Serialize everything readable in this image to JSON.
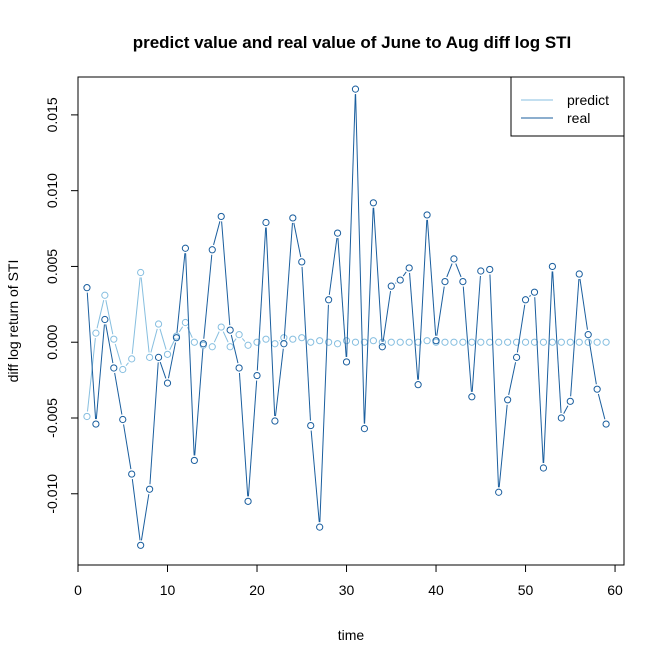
{
  "chart_data": {
    "type": "line",
    "title": "predict value and real value of June to Aug diff log STI",
    "xlabel": "time",
    "ylabel": "diff log return of STI",
    "xlim": [
      0,
      61
    ],
    "ylim": [
      -0.0147,
      0.0175
    ],
    "x_ticks": [
      0,
      10,
      20,
      30,
      40,
      50,
      60
    ],
    "x_tick_labels": [
      "0",
      "10",
      "20",
      "30",
      "40",
      "50",
      "60"
    ],
    "y_ticks": [
      -0.01,
      -0.005,
      0.0,
      0.005,
      0.01,
      0.015
    ],
    "y_tick_labels": [
      "-0.010",
      "-0.005",
      "0.000",
      "0.005",
      "0.010",
      "0.015"
    ],
    "grid": false,
    "legend_position": "top-right",
    "x": [
      1,
      2,
      3,
      4,
      5,
      6,
      7,
      8,
      9,
      10,
      11,
      12,
      13,
      14,
      15,
      16,
      17,
      18,
      19,
      20,
      21,
      22,
      23,
      24,
      25,
      26,
      27,
      28,
      29,
      30,
      31,
      32,
      33,
      34,
      35,
      36,
      37,
      38,
      39,
      40,
      41,
      42,
      43,
      44,
      45,
      46,
      47,
      48,
      49,
      50,
      51,
      52,
      53,
      54,
      55,
      56,
      57,
      58,
      59
    ],
    "series": [
      {
        "name": "predict",
        "color": "#87bfe0",
        "values": [
          -0.0049,
          0.0006,
          0.0031,
          0.0002,
          -0.0018,
          -0.0011,
          0.0046,
          -0.001,
          0.0012,
          -0.0008,
          0.0004,
          0.0013,
          0.0,
          -0.0002,
          -0.0003,
          0.001,
          -0.0003,
          0.0005,
          -0.0002,
          0.0,
          0.0002,
          -0.0001,
          0.0003,
          0.0002,
          0.0003,
          0.0,
          0.0001,
          0.0,
          -0.0001,
          0.0001,
          0.0,
          0.0,
          0.0001,
          0.0,
          0.0,
          0.0,
          0.0,
          0.0,
          0.0001,
          0.0,
          0.0,
          0.0,
          0.0,
          0.0,
          0.0,
          0.0,
          0.0,
          0.0,
          0.0,
          0.0,
          0.0,
          0.0,
          0.0,
          0.0,
          0.0,
          0.0,
          0.0,
          0.0,
          0.0
        ]
      },
      {
        "name": "real",
        "color": "#1a5e9e",
        "values": [
          0.0036,
          -0.0054,
          0.0015,
          -0.0017,
          -0.0051,
          -0.0087,
          -0.0134,
          -0.0097,
          -0.001,
          -0.0027,
          0.0003,
          0.0062,
          -0.0078,
          -0.0001,
          0.0061,
          0.0083,
          0.0008,
          -0.0017,
          -0.0105,
          -0.0022,
          0.0079,
          -0.0052,
          -0.0001,
          0.0082,
          0.0053,
          -0.0055,
          -0.0122,
          0.0028,
          0.0072,
          -0.0013,
          0.0167,
          -0.0057,
          0.0092,
          -0.0003,
          0.0037,
          0.0041,
          0.0049,
          -0.0028,
          0.0084,
          0.0001,
          0.004,
          0.0055,
          0.004,
          -0.0036,
          0.0047,
          0.0048,
          -0.0099,
          -0.0038,
          -0.001,
          0.0028,
          0.0033,
          -0.0083,
          0.005,
          -0.005,
          -0.0039,
          0.0045,
          0.0005,
          -0.0031,
          -0.0054
        ]
      }
    ]
  }
}
